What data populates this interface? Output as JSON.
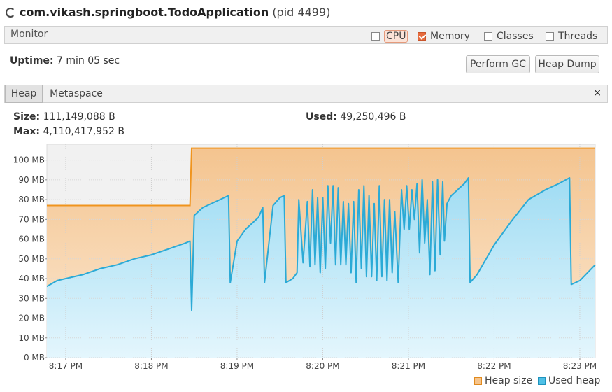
{
  "window": {
    "app_name": "com.vikash.springboot.TodoApplication",
    "pid_label": "(pid 4499)"
  },
  "monitor": {
    "label": "Monitor",
    "checkboxes": [
      {
        "label": "CPU",
        "checked": false
      },
      {
        "label": "Memory",
        "checked": true
      },
      {
        "label": "Classes",
        "checked": false
      },
      {
        "label": "Threads",
        "checked": false
      }
    ]
  },
  "uptime": {
    "label": "Uptime:",
    "value": "7 min 05 sec"
  },
  "buttons": {
    "perform_gc": "Perform GC",
    "heap_dump": "Heap Dump"
  },
  "tabs": [
    {
      "label": "Heap",
      "active": true
    },
    {
      "label": "Metaspace",
      "active": false
    }
  ],
  "tab_close": "×",
  "stats": {
    "size_label": "Size:",
    "size_value": "111,149,088 B",
    "used_label": "Used:",
    "used_value": "49,250,496 B",
    "max_label": "Max:",
    "max_value": "4,110,417,952 B"
  },
  "colors": {
    "heap_size": "#f0941d",
    "heap_fill": "#f8d6ab",
    "used_heap": "#2baad6",
    "used_fill": "#bde8f8",
    "accent": "#e66a3c"
  },
  "chart_data": {
    "type": "area",
    "x_ticks": [
      "8:17 PM",
      "8:18 PM",
      "8:19 PM",
      "8:20 PM",
      "8:21 PM",
      "8:22 PM",
      "8:23 PM"
    ],
    "y_ticks": [
      "0 MB",
      "10 MB",
      "20 MB",
      "30 MB",
      "40 MB",
      "50 MB",
      "60 MB",
      "70 MB",
      "80 MB",
      "90 MB",
      "100 MB"
    ],
    "ylim": [
      0,
      108
    ],
    "xlim": [
      -0.22,
      6.18
    ],
    "grid": true,
    "legend_position": "bottom-right",
    "series": [
      {
        "name": "Heap size",
        "points": [
          [
            -0.22,
            77
          ],
          [
            1.45,
            77
          ],
          [
            1.47,
            106
          ],
          [
            6.18,
            106
          ]
        ]
      },
      {
        "name": "Used heap",
        "points": [
          [
            -0.22,
            36
          ],
          [
            -0.1,
            39
          ],
          [
            0.0,
            40
          ],
          [
            0.2,
            42
          ],
          [
            0.4,
            45
          ],
          [
            0.6,
            47
          ],
          [
            0.8,
            50
          ],
          [
            1.0,
            52
          ],
          [
            1.2,
            55
          ],
          [
            1.4,
            58
          ],
          [
            1.45,
            59
          ],
          [
            1.47,
            24
          ],
          [
            1.5,
            72
          ],
          [
            1.6,
            76
          ],
          [
            1.8,
            80
          ],
          [
            1.9,
            82
          ],
          [
            1.92,
            38
          ],
          [
            2.0,
            59
          ],
          [
            2.1,
            65
          ],
          [
            2.25,
            71
          ],
          [
            2.3,
            76
          ],
          [
            2.32,
            38
          ],
          [
            2.42,
            77
          ],
          [
            2.5,
            81
          ],
          [
            2.55,
            82
          ],
          [
            2.57,
            38
          ],
          [
            2.65,
            40
          ],
          [
            2.7,
            43
          ],
          [
            2.72,
            80
          ],
          [
            2.77,
            48
          ],
          [
            2.82,
            79
          ],
          [
            2.85,
            46
          ],
          [
            2.88,
            85
          ],
          [
            2.91,
            47
          ],
          [
            2.94,
            81
          ],
          [
            2.97,
            43
          ],
          [
            3.0,
            81
          ],
          [
            3.03,
            45
          ],
          [
            3.06,
            87
          ],
          [
            3.09,
            58
          ],
          [
            3.12,
            87
          ],
          [
            3.15,
            47
          ],
          [
            3.18,
            86
          ],
          [
            3.21,
            47
          ],
          [
            3.24,
            79
          ],
          [
            3.27,
            47
          ],
          [
            3.3,
            78
          ],
          [
            3.33,
            43
          ],
          [
            3.36,
            79
          ],
          [
            3.39,
            38
          ],
          [
            3.42,
            85
          ],
          [
            3.45,
            45
          ],
          [
            3.48,
            87
          ],
          [
            3.51,
            41
          ],
          [
            3.54,
            82
          ],
          [
            3.57,
            41
          ],
          [
            3.6,
            78
          ],
          [
            3.63,
            39
          ],
          [
            3.66,
            87
          ],
          [
            3.69,
            41
          ],
          [
            3.72,
            80
          ],
          [
            3.75,
            39
          ],
          [
            3.78,
            80
          ],
          [
            3.81,
            43
          ],
          [
            3.84,
            74
          ],
          [
            3.88,
            38
          ],
          [
            3.92,
            85
          ],
          [
            3.95,
            65
          ],
          [
            3.98,
            87
          ],
          [
            4.01,
            65
          ],
          [
            4.04,
            85
          ],
          [
            4.07,
            70
          ],
          [
            4.1,
            88
          ],
          [
            4.13,
            53
          ],
          [
            4.16,
            90
          ],
          [
            4.19,
            58
          ],
          [
            4.22,
            80
          ],
          [
            4.25,
            42
          ],
          [
            4.28,
            89
          ],
          [
            4.31,
            44
          ],
          [
            4.34,
            90
          ],
          [
            4.37,
            52
          ],
          [
            4.4,
            89
          ],
          [
            4.42,
            59
          ],
          [
            4.45,
            78
          ],
          [
            4.5,
            82
          ],
          [
            4.55,
            84
          ],
          [
            4.6,
            86
          ],
          [
            4.65,
            88
          ],
          [
            4.7,
            91
          ],
          [
            4.72,
            38
          ],
          [
            4.8,
            42
          ],
          [
            5.0,
            57
          ],
          [
            5.2,
            69
          ],
          [
            5.4,
            80
          ],
          [
            5.6,
            85
          ],
          [
            5.75,
            88
          ],
          [
            5.88,
            91
          ],
          [
            5.9,
            37
          ],
          [
            6.0,
            39
          ],
          [
            6.18,
            47
          ]
        ]
      }
    ]
  }
}
